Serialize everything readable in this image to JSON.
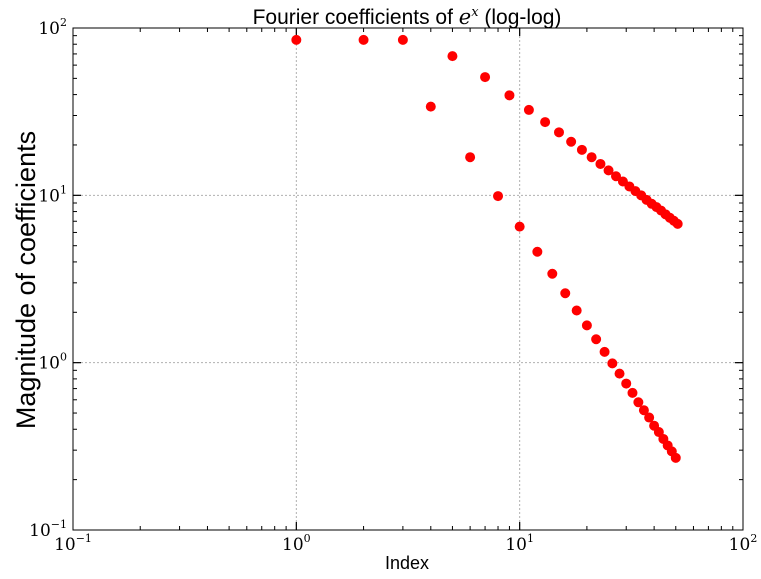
{
  "chart_data": {
    "type": "scatter",
    "title": "Fourier coefficients of ",
    "title_math": "e",
    "title_math_sup": "x",
    "title_suffix": " (log-log)",
    "xlabel": "Index",
    "ylabel": "Magnitude of coefficients",
    "xscale": "log",
    "yscale": "log",
    "xlim": [
      0.1,
      100
    ],
    "ylim": [
      0.1,
      100
    ],
    "grid": true,
    "marker_color": "#ff0000",
    "x_ticks": [
      {
        "base": "10",
        "exp": "−1",
        "value": 0.1
      },
      {
        "base": "10",
        "exp": "0",
        "value": 1
      },
      {
        "base": "10",
        "exp": "1",
        "value": 10
      },
      {
        "base": "10",
        "exp": "2",
        "value": 100
      }
    ],
    "y_ticks": [
      {
        "base": "10",
        "exp": "−1",
        "value": 0.1
      },
      {
        "base": "10",
        "exp": "0",
        "value": 1
      },
      {
        "base": "10",
        "exp": "1",
        "value": 10
      },
      {
        "base": "10",
        "exp": "2",
        "value": 100
      }
    ],
    "points": [
      {
        "x": 1,
        "y": 84.9
      },
      {
        "x": 2,
        "y": 84.9
      },
      {
        "x": 3,
        "y": 84.9
      },
      {
        "x": 4,
        "y": 33.9
      },
      {
        "x": 5,
        "y": 67.9
      },
      {
        "x": 6,
        "y": 16.9
      },
      {
        "x": 7,
        "y": 50.9
      },
      {
        "x": 8,
        "y": 9.9
      },
      {
        "x": 9,
        "y": 39.6
      },
      {
        "x": 10,
        "y": 6.5
      },
      {
        "x": 11,
        "y": 32.4
      },
      {
        "x": 12,
        "y": 4.6
      },
      {
        "x": 13,
        "y": 27.4
      },
      {
        "x": 14,
        "y": 3.4
      },
      {
        "x": 15,
        "y": 23.8
      },
      {
        "x": 16,
        "y": 2.6
      },
      {
        "x": 17,
        "y": 20.9
      },
      {
        "x": 18,
        "y": 2.05
      },
      {
        "x": 19,
        "y": 18.7
      },
      {
        "x": 20,
        "y": 1.67
      },
      {
        "x": 21,
        "y": 16.9
      },
      {
        "x": 22,
        "y": 1.38
      },
      {
        "x": 23,
        "y": 15.4
      },
      {
        "x": 24,
        "y": 1.16
      },
      {
        "x": 25,
        "y": 14.1
      },
      {
        "x": 26,
        "y": 0.99
      },
      {
        "x": 27,
        "y": 13.0
      },
      {
        "x": 28,
        "y": 0.86
      },
      {
        "x": 29,
        "y": 12.1
      },
      {
        "x": 30,
        "y": 0.75
      },
      {
        "x": 31,
        "y": 11.3
      },
      {
        "x": 32,
        "y": 0.66
      },
      {
        "x": 33,
        "y": 10.6
      },
      {
        "x": 34,
        "y": 0.58
      },
      {
        "x": 35,
        "y": 10.0
      },
      {
        "x": 36,
        "y": 0.52
      },
      {
        "x": 37,
        "y": 9.4
      },
      {
        "x": 38,
        "y": 0.47
      },
      {
        "x": 39,
        "y": 8.9
      },
      {
        "x": 40,
        "y": 0.42
      },
      {
        "x": 41,
        "y": 8.5
      },
      {
        "x": 42,
        "y": 0.385
      },
      {
        "x": 43,
        "y": 8.1
      },
      {
        "x": 44,
        "y": 0.35
      },
      {
        "x": 45,
        "y": 7.7
      },
      {
        "x": 46,
        "y": 0.32
      },
      {
        "x": 47,
        "y": 7.35
      },
      {
        "x": 48,
        "y": 0.295
      },
      {
        "x": 49,
        "y": 7.05
      },
      {
        "x": 50,
        "y": 0.27
      },
      {
        "x": 51,
        "y": 6.75
      }
    ]
  }
}
